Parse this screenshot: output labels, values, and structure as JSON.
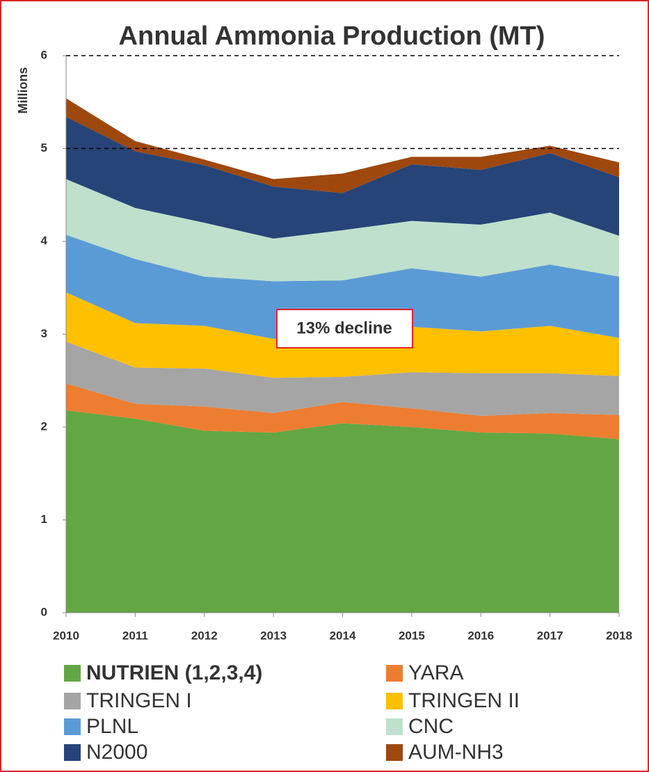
{
  "chart_data": {
    "type": "stacked_area",
    "title": "Annual Ammonia Production (MT)",
    "y_label": "Millions",
    "annotation": "13% decline",
    "categories": [
      "2010",
      "2011",
      "2012",
      "2013",
      "2014",
      "2015",
      "2016",
      "2017",
      "2018"
    ],
    "series": [
      {
        "name": "NUTRIEN (1,2,3,4)",
        "color": "#62a744",
        "values": [
          2.18,
          2.09,
          1.96,
          1.94,
          2.04,
          2.0,
          1.94,
          1.93,
          1.87
        ]
      },
      {
        "name": "YARA",
        "color": "#ed7d31",
        "values": [
          0.29,
          0.16,
          0.26,
          0.21,
          0.23,
          0.2,
          0.18,
          0.22,
          0.26
        ]
      },
      {
        "name": "TRINGEN I",
        "color": "#a5a5a5",
        "values": [
          0.45,
          0.39,
          0.41,
          0.38,
          0.27,
          0.39,
          0.46,
          0.43,
          0.42
        ]
      },
      {
        "name": "TRINGEN II",
        "color": "#ffc000",
        "values": [
          0.53,
          0.48,
          0.46,
          0.42,
          0.44,
          0.49,
          0.45,
          0.51,
          0.41
        ]
      },
      {
        "name": "PLNL",
        "color": "#5b9bd5",
        "values": [
          0.62,
          0.69,
          0.53,
          0.62,
          0.6,
          0.63,
          0.59,
          0.66,
          0.66
        ]
      },
      {
        "name": "CNC",
        "color": "#bfe0cc",
        "values": [
          0.6,
          0.55,
          0.58,
          0.46,
          0.54,
          0.51,
          0.56,
          0.56,
          0.44
        ]
      },
      {
        "name": "N2000",
        "color": "#264478",
        "values": [
          0.67,
          0.61,
          0.62,
          0.56,
          0.4,
          0.61,
          0.59,
          0.64,
          0.63
        ]
      },
      {
        "name": "AUM-NH3",
        "color": "#9e480e",
        "values": [
          0.2,
          0.11,
          0.06,
          0.08,
          0.21,
          0.08,
          0.14,
          0.08,
          0.16
        ]
      }
    ],
    "ylim": [
      0,
      6
    ],
    "yticks": [
      0,
      1,
      2,
      3,
      4,
      5,
      6
    ],
    "reference_lines": [
      6,
      5
    ],
    "legend": "bottom"
  }
}
